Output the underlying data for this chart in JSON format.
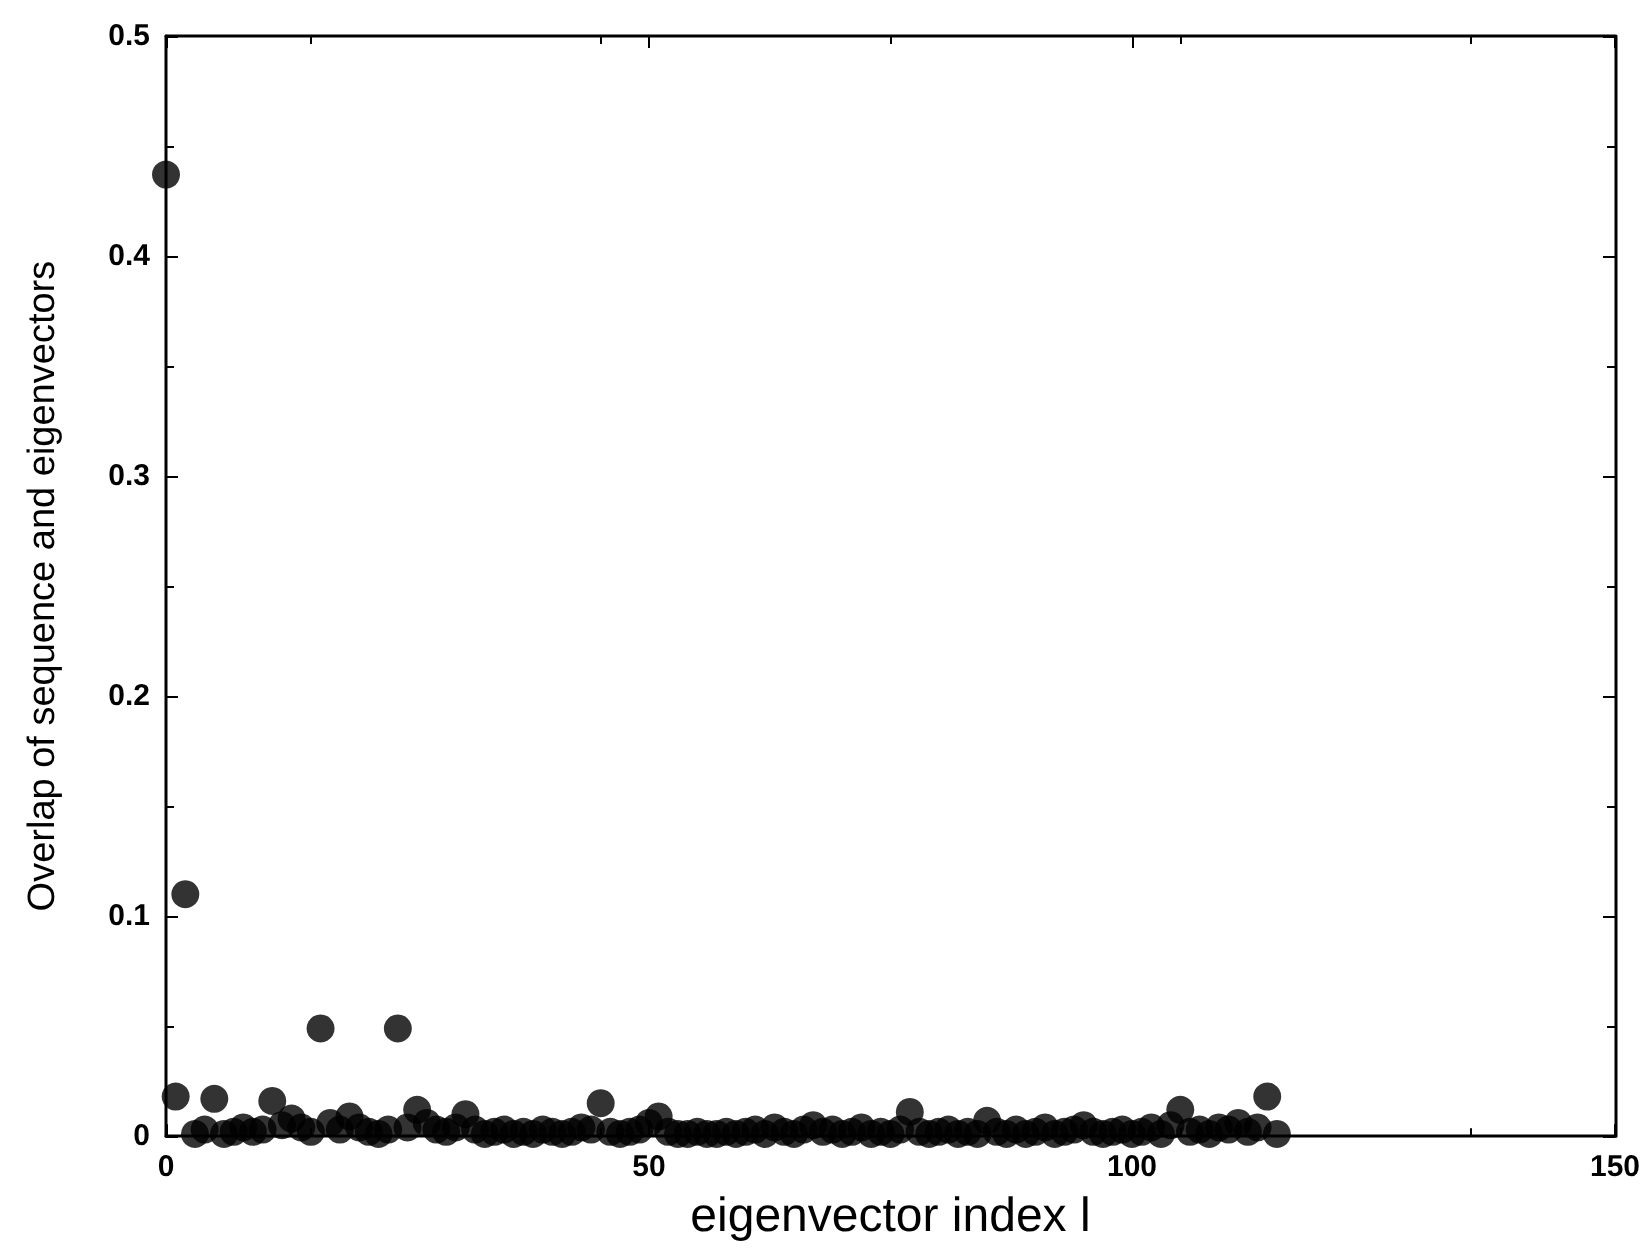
{
  "chart_data": {
    "type": "scatter",
    "xlabel": "eigenvector index l",
    "ylabel": "Overlap of sequence and eigenvectors",
    "x": [
      0,
      1,
      2,
      3,
      4,
      5,
      6,
      7,
      8,
      9,
      10,
      11,
      12,
      13,
      14,
      15,
      16,
      17,
      18,
      19,
      20,
      21,
      22,
      23,
      24,
      25,
      26,
      27,
      28,
      29,
      30,
      31,
      32,
      33,
      34,
      35,
      36,
      37,
      38,
      39,
      40,
      41,
      42,
      43,
      44,
      45,
      46,
      47,
      48,
      49,
      50,
      51,
      52,
      53,
      54,
      55,
      56,
      57,
      58,
      59,
      60,
      61,
      62,
      63,
      64,
      65,
      66,
      67,
      68,
      69,
      70,
      71,
      72,
      73,
      74,
      75,
      76,
      77,
      78,
      79,
      80,
      81,
      82,
      83,
      84,
      85,
      86,
      87,
      88,
      89,
      90,
      91,
      92,
      93,
      94,
      95,
      96,
      97,
      98,
      99,
      100,
      101,
      102,
      103,
      104,
      105,
      106,
      107,
      108,
      109,
      110,
      111,
      112,
      113,
      114,
      115
    ],
    "values": [
      0.437,
      0.018,
      0.11,
      0.001,
      0.003,
      0.017,
      0.001,
      0.002,
      0.004,
      0.002,
      0.003,
      0.016,
      0.005,
      0.008,
      0.004,
      0.002,
      0.049,
      0.006,
      0.003,
      0.009,
      0.004,
      0.002,
      0.001,
      0.003,
      0.049,
      0.004,
      0.012,
      0.006,
      0.003,
      0.002,
      0.004,
      0.01,
      0.003,
      0.001,
      0.002,
      0.003,
      0.001,
      0.002,
      0.001,
      0.003,
      0.002,
      0.001,
      0.002,
      0.004,
      0.003,
      0.015,
      0.002,
      0.001,
      0.002,
      0.003,
      0.006,
      0.009,
      0.002,
      0.001,
      0.001,
      0.002,
      0.001,
      0.001,
      0.002,
      0.001,
      0.002,
      0.003,
      0.001,
      0.004,
      0.002,
      0.001,
      0.003,
      0.005,
      0.002,
      0.003,
      0.001,
      0.002,
      0.004,
      0.001,
      0.002,
      0.001,
      0.003,
      0.011,
      0.002,
      0.001,
      0.002,
      0.003,
      0.001,
      0.002,
      0.001,
      0.007,
      0.002,
      0.001,
      0.003,
      0.001,
      0.002,
      0.004,
      0.001,
      0.002,
      0.003,
      0.005,
      0.002,
      0.001,
      0.002,
      0.003,
      0.001,
      0.002,
      0.004,
      0.001,
      0.005,
      0.012,
      0.002,
      0.003,
      0.001,
      0.004,
      0.003,
      0.006,
      0.002,
      0.004,
      0.018,
      0.001
    ],
    "color": "#000000",
    "marker": "circle",
    "xlim": [
      0,
      150
    ],
    "xticks": [
      0,
      50,
      100,
      150
    ],
    "ylim": [
      0,
      0.5
    ],
    "yticks": [
      0,
      0.1,
      0.2,
      0.3,
      0.4,
      0.5
    ],
    "grid": false
  }
}
